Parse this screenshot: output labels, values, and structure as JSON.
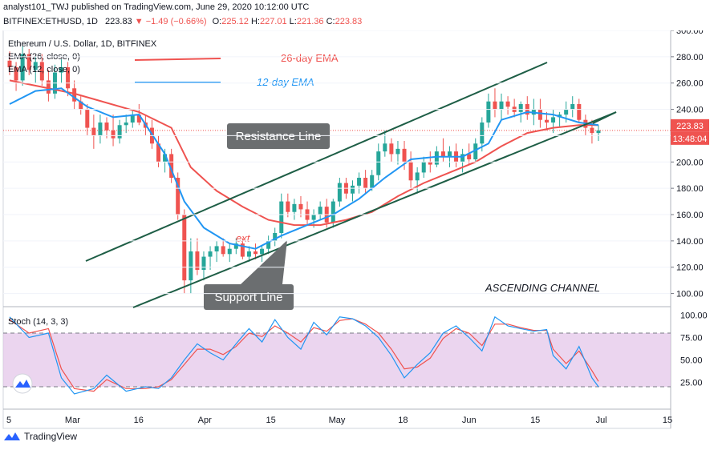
{
  "header": {
    "publisher": "analyst101_TWJ published on TradingView.com, June 29, 2020 10:12:00 UTC",
    "symbol_line": "BITFINEX:ETHUSD, 1D",
    "last": "223.83",
    "change": "−1.49 (−0.66%)",
    "o_label": "O:",
    "o": "225.12",
    "h_label": "H:",
    "h": "227.01",
    "l_label": "L:",
    "l": "221.36",
    "c_label": "C:",
    "c": "223.83"
  },
  "footer": {
    "brand": "TradingView"
  },
  "colors": {
    "up": "#26a69a",
    "down": "#ef5350",
    "ema26": "#ef5350",
    "ema12": "#2196f3",
    "channel": "#1e5e46",
    "stoch_k": "#2196f3",
    "stoch_d": "#ef5350",
    "stoch_bg": "#e1bee7"
  },
  "chart_data": {
    "type": "candlestick",
    "title": "Ethereum / U.S. Dollar, 1D, BITFINEX",
    "legend": [
      "EMA (26, close, 0)",
      "EMA (12, close, 0)"
    ],
    "annotations": {
      "ema26": "26-day EMA",
      "ema12": "12-day EMA",
      "resistance": "Resistance Line",
      "support": "Support Line",
      "pattern": "ASCENDING CHANNEL",
      "stray": "ext"
    },
    "price_axis": {
      "min": 90,
      "max": 300,
      "ticks": [
        100,
        120,
        140,
        160,
        180,
        200,
        220,
        240,
        260,
        280,
        300
      ]
    },
    "last_price_label": "223.83",
    "countdown_label": "13:48:04",
    "x_axis": {
      "labels": [
        "5",
        "Mar",
        "16",
        "Apr",
        "15",
        "May",
        "18",
        "Jun",
        "15",
        "Jul",
        "15"
      ]
    },
    "candles": [
      [
        277,
        284,
        266,
        272
      ],
      [
        272,
        276,
        254,
        262
      ],
      [
        262,
        288,
        258,
        282
      ],
      [
        282,
        286,
        266,
        270
      ],
      [
        270,
        280,
        260,
        276
      ],
      [
        276,
        282,
        258,
        262
      ],
      [
        262,
        270,
        246,
        252
      ],
      [
        252,
        274,
        248,
        268
      ],
      [
        268,
        278,
        260,
        272
      ],
      [
        272,
        276,
        250,
        256
      ],
      [
        256,
        262,
        240,
        246
      ],
      [
        246,
        250,
        236,
        240
      ],
      [
        240,
        244,
        220,
        226
      ],
      [
        226,
        236,
        210,
        220
      ],
      [
        220,
        236,
        214,
        230
      ],
      [
        230,
        234,
        218,
        224
      ],
      [
        224,
        236,
        212,
        218
      ],
      [
        218,
        232,
        214,
        228
      ],
      [
        228,
        236,
        222,
        230
      ],
      [
        230,
        240,
        226,
        236
      ],
      [
        236,
        244,
        228,
        230
      ],
      [
        230,
        236,
        220,
        226
      ],
      [
        226,
        232,
        210,
        214
      ],
      [
        214,
        220,
        196,
        200
      ],
      [
        200,
        210,
        192,
        206
      ],
      [
        206,
        210,
        184,
        188
      ],
      [
        188,
        192,
        156,
        160
      ],
      [
        160,
        164,
        100,
        110
      ],
      [
        110,
        142,
        100,
        132
      ],
      [
        132,
        142,
        114,
        118
      ],
      [
        118,
        132,
        110,
        128
      ],
      [
        128,
        136,
        118,
        132
      ],
      [
        132,
        140,
        124,
        136
      ],
      [
        136,
        142,
        128,
        130
      ],
      [
        130,
        138,
        124,
        134
      ],
      [
        134,
        142,
        130,
        138
      ],
      [
        138,
        142,
        126,
        128
      ],
      [
        128,
        136,
        124,
        132
      ],
      [
        132,
        138,
        126,
        130
      ],
      [
        130,
        136,
        124,
        134
      ],
      [
        134,
        144,
        130,
        140
      ],
      [
        140,
        150,
        136,
        146
      ],
      [
        146,
        176,
        142,
        170
      ],
      [
        170,
        176,
        158,
        162
      ],
      [
        162,
        172,
        156,
        168
      ],
      [
        168,
        174,
        158,
        164
      ],
      [
        164,
        170,
        152,
        156
      ],
      [
        156,
        164,
        150,
        160
      ],
      [
        160,
        170,
        156,
        166
      ],
      [
        166,
        172,
        150,
        154
      ],
      [
        154,
        172,
        150,
        170
      ],
      [
        170,
        188,
        166,
        184
      ],
      [
        184,
        188,
        172,
        176
      ],
      [
        176,
        186,
        170,
        182
      ],
      [
        182,
        192,
        176,
        188
      ],
      [
        188,
        194,
        176,
        180
      ],
      [
        180,
        194,
        178,
        190
      ],
      [
        190,
        214,
        186,
        208
      ],
      [
        208,
        224,
        204,
        214
      ],
      [
        214,
        218,
        200,
        206
      ],
      [
        206,
        216,
        198,
        210
      ],
      [
        210,
        216,
        194,
        200
      ],
      [
        200,
        208,
        180,
        186
      ],
      [
        186,
        196,
        176,
        192
      ],
      [
        192,
        204,
        188,
        200
      ],
      [
        200,
        208,
        192,
        198
      ],
      [
        198,
        212,
        196,
        208
      ],
      [
        208,
        218,
        200,
        204
      ],
      [
        204,
        212,
        196,
        208
      ],
      [
        208,
        214,
        196,
        200
      ],
      [
        200,
        210,
        192,
        206
      ],
      [
        206,
        214,
        198,
        202
      ],
      [
        202,
        218,
        200,
        214
      ],
      [
        214,
        234,
        208,
        230
      ],
      [
        230,
        252,
        226,
        246
      ],
      [
        246,
        256,
        234,
        240
      ],
      [
        240,
        252,
        232,
        246
      ],
      [
        246,
        250,
        236,
        242
      ],
      [
        242,
        248,
        234,
        238
      ],
      [
        238,
        246,
        230,
        244
      ],
      [
        244,
        250,
        232,
        236
      ],
      [
        236,
        248,
        228,
        240
      ],
      [
        240,
        248,
        226,
        232
      ],
      [
        232,
        238,
        224,
        230
      ],
      [
        230,
        240,
        222,
        234
      ],
      [
        234,
        238,
        226,
        236
      ],
      [
        236,
        246,
        230,
        240
      ],
      [
        240,
        250,
        234,
        244
      ],
      [
        244,
        248,
        230,
        232
      ],
      [
        232,
        236,
        220,
        226
      ],
      [
        226,
        232,
        214,
        222
      ],
      [
        222,
        228,
        216,
        224
      ]
    ],
    "ema26": [
      [
        0,
        262
      ],
      [
        10,
        252
      ],
      [
        20,
        238
      ],
      [
        25,
        226
      ],
      [
        28,
        196
      ],
      [
        32,
        178
      ],
      [
        36,
        166
      ],
      [
        40,
        156
      ],
      [
        44,
        152
      ],
      [
        48,
        152
      ],
      [
        52,
        156
      ],
      [
        56,
        162
      ],
      [
        60,
        174
      ],
      [
        64,
        184
      ],
      [
        68,
        192
      ],
      [
        72,
        200
      ],
      [
        76,
        212
      ],
      [
        80,
        222
      ],
      [
        84,
        226
      ],
      [
        88,
        228
      ],
      [
        91,
        228
      ]
    ],
    "ema12": [
      [
        0,
        244
      ],
      [
        4,
        254
      ],
      [
        8,
        256
      ],
      [
        12,
        242
      ],
      [
        16,
        234
      ],
      [
        20,
        236
      ],
      [
        24,
        206
      ],
      [
        27,
        170
      ],
      [
        30,
        150
      ],
      [
        34,
        138
      ],
      [
        38,
        134
      ],
      [
        42,
        144
      ],
      [
        46,
        152
      ],
      [
        50,
        160
      ],
      [
        54,
        172
      ],
      [
        58,
        188
      ],
      [
        62,
        202
      ],
      [
        66,
        204
      ],
      [
        70,
        204
      ],
      [
        74,
        214
      ],
      [
        76,
        232
      ],
      [
        80,
        238
      ],
      [
        84,
        236
      ],
      [
        88,
        230
      ],
      [
        91,
        228
      ]
    ],
    "stoch": {
      "label": "Stoch (14, 3, 3)",
      "bands": [
        20,
        80
      ],
      "ticks": [
        25,
        50,
        75,
        100
      ],
      "k": [
        [
          0,
          98
        ],
        [
          3,
          75
        ],
        [
          6,
          80
        ],
        [
          8,
          30
        ],
        [
          10,
          12
        ],
        [
          13,
          18
        ],
        [
          15,
          33
        ],
        [
          18,
          15
        ],
        [
          21,
          20
        ],
        [
          23,
          18
        ],
        [
          25,
          30
        ],
        [
          27,
          50
        ],
        [
          29,
          68
        ],
        [
          31,
          58
        ],
        [
          33,
          50
        ],
        [
          35,
          68
        ],
        [
          37,
          85
        ],
        [
          39,
          70
        ],
        [
          41,
          95
        ],
        [
          43,
          75
        ],
        [
          45,
          62
        ],
        [
          47,
          92
        ],
        [
          49,
          78
        ],
        [
          51,
          98
        ],
        [
          53,
          96
        ],
        [
          55,
          88
        ],
        [
          57,
          75
        ],
        [
          59,
          55
        ],
        [
          61,
          30
        ],
        [
          63,
          45
        ],
        [
          65,
          58
        ],
        [
          67,
          80
        ],
        [
          69,
          88
        ],
        [
          71,
          75
        ],
        [
          73,
          60
        ],
        [
          75,
          98
        ],
        [
          77,
          88
        ],
        [
          79,
          85
        ],
        [
          81,
          82
        ],
        [
          83,
          84
        ],
        [
          84,
          55
        ],
        [
          86,
          40
        ],
        [
          88,
          65
        ],
        [
          90,
          30
        ],
        [
          91,
          20
        ]
      ],
      "d": [
        [
          0,
          95
        ],
        [
          3,
          80
        ],
        [
          6,
          85
        ],
        [
          8,
          40
        ],
        [
          10,
          18
        ],
        [
          13,
          15
        ],
        [
          15,
          28
        ],
        [
          18,
          18
        ],
        [
          21,
          18
        ],
        [
          23,
          20
        ],
        [
          25,
          28
        ],
        [
          27,
          45
        ],
        [
          29,
          62
        ],
        [
          31,
          62
        ],
        [
          33,
          56
        ],
        [
          35,
          65
        ],
        [
          37,
          80
        ],
        [
          39,
          76
        ],
        [
          41,
          88
        ],
        [
          43,
          80
        ],
        [
          45,
          70
        ],
        [
          47,
          86
        ],
        [
          49,
          82
        ],
        [
          51,
          94
        ],
        [
          53,
          96
        ],
        [
          55,
          90
        ],
        [
          57,
          80
        ],
        [
          59,
          62
        ],
        [
          61,
          40
        ],
        [
          63,
          42
        ],
        [
          65,
          52
        ],
        [
          67,
          74
        ],
        [
          69,
          85
        ],
        [
          71,
          80
        ],
        [
          73,
          66
        ],
        [
          75,
          90
        ],
        [
          77,
          90
        ],
        [
          79,
          86
        ],
        [
          81,
          83
        ],
        [
          83,
          83
        ],
        [
          84,
          62
        ],
        [
          86,
          46
        ],
        [
          88,
          60
        ],
        [
          90,
          38
        ],
        [
          91,
          26
        ]
      ]
    }
  }
}
